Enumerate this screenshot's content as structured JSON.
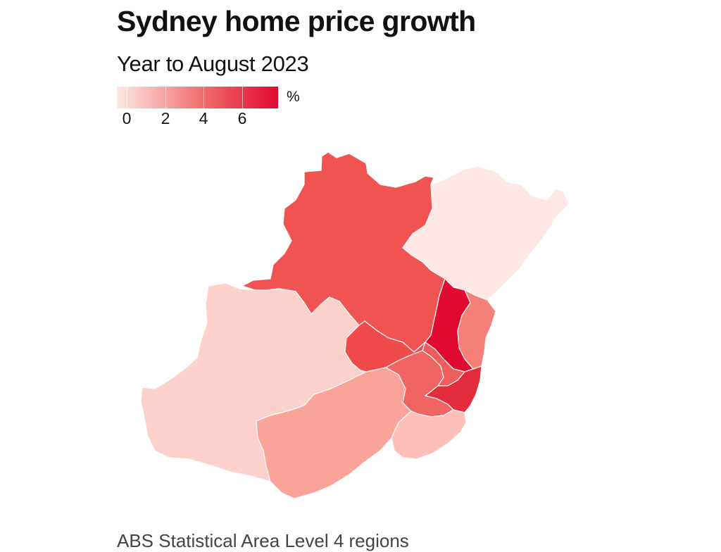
{
  "title": "Sydney home price growth",
  "subtitle": "Year to August 2023",
  "legend": {
    "unit": "%",
    "ticks": [
      {
        "label": "0",
        "value": 0
      },
      {
        "label": "2",
        "value": 2
      },
      {
        "label": "4",
        "value": 4
      },
      {
        "label": "6",
        "value": 6
      }
    ],
    "range": [
      0,
      8.4
    ],
    "color_low": "#fde8e5",
    "color_mid": "#ef6a6a",
    "color_high": "#e0092f"
  },
  "map": {
    "colors": {
      "ocean_background": "#ffffff",
      "region_border": "#ffffff"
    },
    "regions": [
      {
        "id": "north-west-hawkesbury",
        "growth": 5.6,
        "color": "#ef5452"
      },
      {
        "id": "central-coast",
        "growth": 0.6,
        "color": "#fde8e5"
      },
      {
        "id": "outer-west-blue-mountains",
        "growth": 1.5,
        "color": "#fcd1cb"
      },
      {
        "id": "south-west-macarthur",
        "growth": 3.0,
        "color": "#f9a399"
      },
      {
        "id": "blacktown-parramatta",
        "growth": 6.0,
        "color": "#ef4b4d"
      },
      {
        "id": "ryde-hornsby",
        "growth": 8.0,
        "color": "#e0092f"
      },
      {
        "id": "northern-beaches",
        "growth": 3.8,
        "color": "#f48079"
      },
      {
        "id": "inner-west-city",
        "growth": 5.2,
        "color": "#ee5d5d"
      },
      {
        "id": "eastern-suburbs",
        "growth": 6.6,
        "color": "#e52c3e"
      },
      {
        "id": "canterbury-bankstown",
        "growth": 5.0,
        "color": "#f06463"
      },
      {
        "id": "sutherland",
        "growth": 1.8,
        "color": "#fcc0b8"
      }
    ]
  },
  "footnote": "ABS Statistical Area Level 4 regions"
}
